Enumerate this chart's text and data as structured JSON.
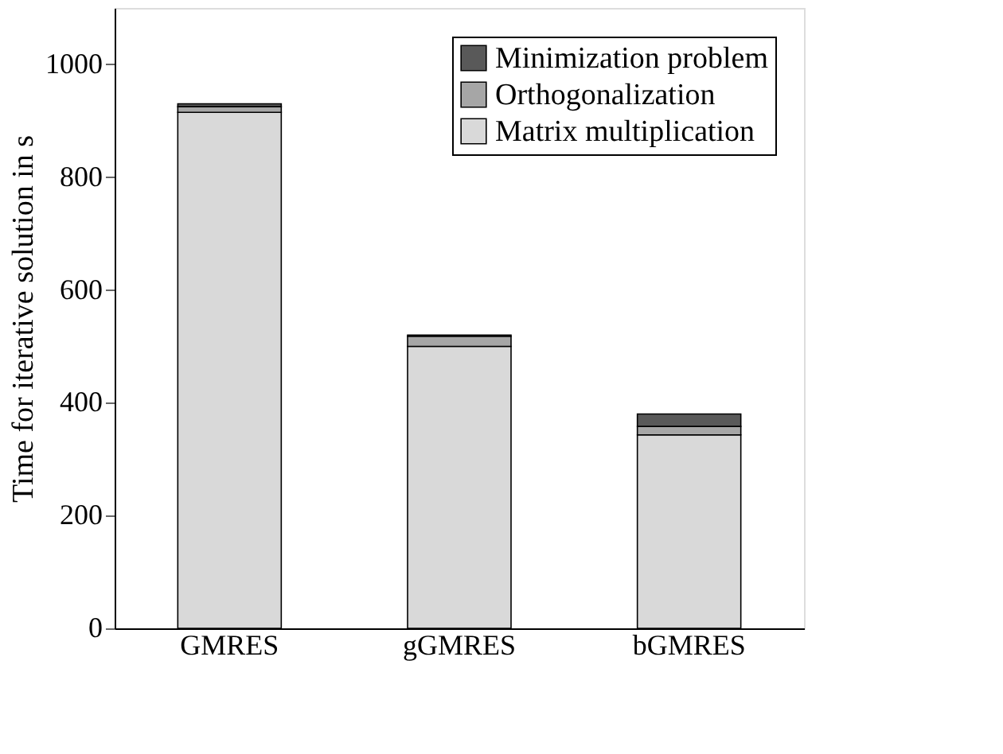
{
  "chart_data": {
    "type": "bar",
    "stacked": true,
    "ylabel": "Time for iterative solution in s",
    "categories": [
      "GMRES",
      "gGMRES",
      "bGMRES"
    ],
    "series": [
      {
        "name": "Matrix multiplication",
        "color": "#d9d9d9",
        "values": [
          915,
          500,
          343
        ]
      },
      {
        "name": "Orthogonalization",
        "color": "#a6a6a6",
        "values": [
          10,
          18,
          15
        ]
      },
      {
        "name": "Minimization problem",
        "color": "#595959",
        "values": [
          5,
          2,
          22
        ]
      }
    ],
    "ylim": [
      0,
      1100
    ],
    "yticks": [
      0,
      200,
      400,
      600,
      800,
      1000
    ],
    "grid": false,
    "legend": "top right"
  }
}
